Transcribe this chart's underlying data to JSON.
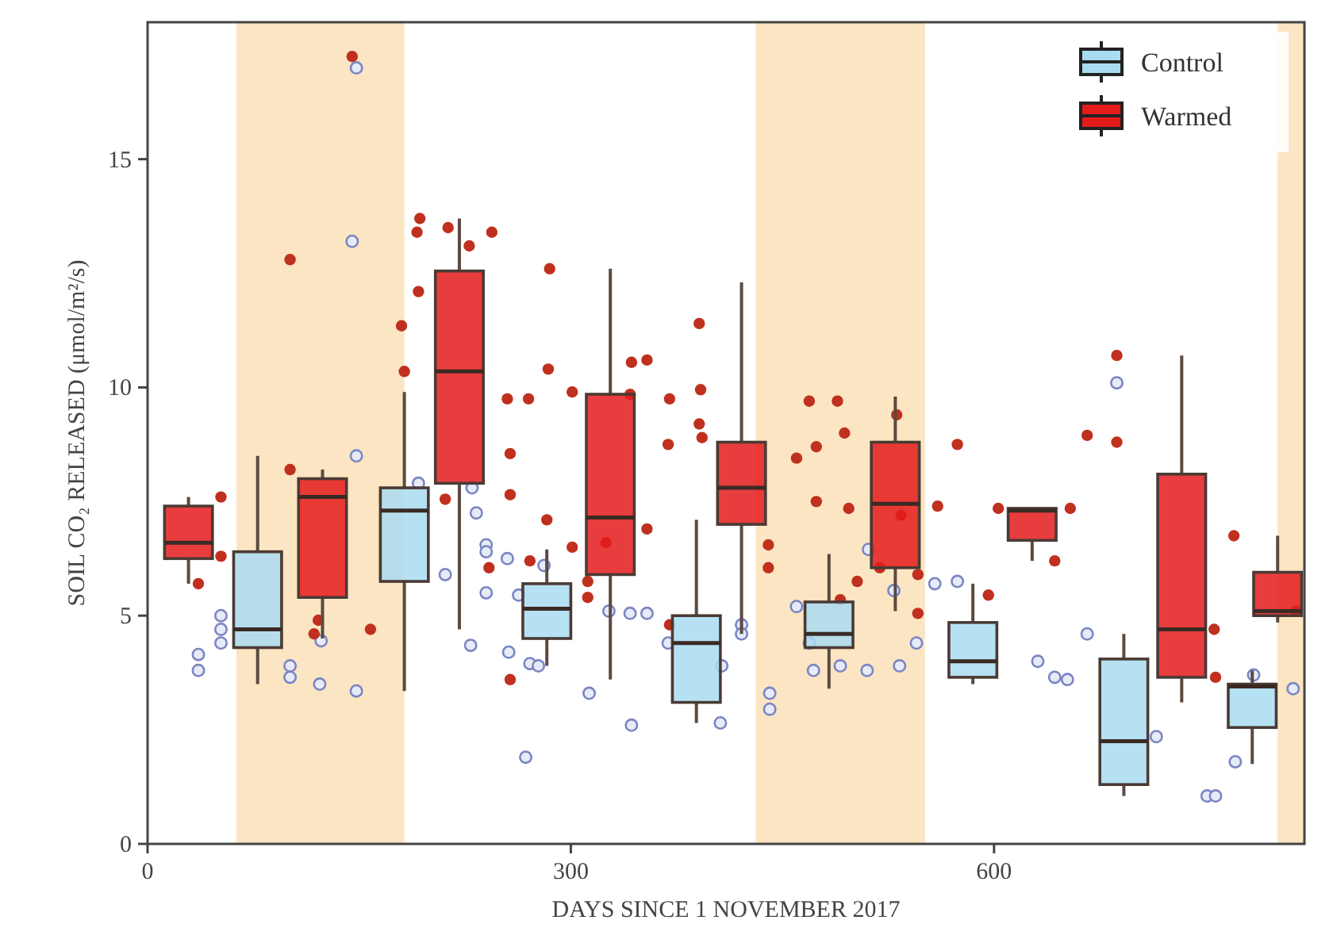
{
  "chart_data": {
    "type": "box",
    "xlabel": "DAYS SINCE 1 NOVEMBER 2017",
    "ylabel": "SOIL CO₂ RELEASED (μmol/m²/s)",
    "xlim": [
      0,
      820
    ],
    "xticks": [
      0,
      300,
      600
    ],
    "ylim": [
      0,
      18
    ],
    "yticks": [
      0,
      5,
      10,
      15
    ],
    "legend": "top right",
    "marker": "circle",
    "bands": [
      {
        "axis": "x",
        "from": 63,
        "to": 182,
        "color": "#fbe5c2"
      },
      {
        "axis": "x",
        "from": 431,
        "to": 551,
        "color": "#fbe5c2"
      },
      {
        "axis": "x",
        "from": 801,
        "to": 820,
        "color": "#fbe5c2"
      }
    ],
    "series": [
      {
        "type": "scatter",
        "color": "#7b86c4",
        "x": [
          36,
          36,
          52,
          52,
          52,
          101,
          101,
          123,
          122,
          148,
          148,
          145,
          148,
          192,
          230,
          233,
          240,
          240,
          240,
          255,
          263,
          256,
          271,
          268,
          229,
          211,
          281,
          277,
          327,
          342,
          354,
          343,
          313,
          369,
          407,
          406,
          421,
          421,
          441,
          441,
          460,
          469,
          472,
          491,
          510,
          511,
          529,
          533,
          545,
          558,
          574,
          631,
          643,
          652,
          666,
          715,
          751,
          757,
          771,
          784,
          812,
          687
        ],
        "values": [
          4.15,
          3.8,
          5.0,
          4.7,
          4.4,
          3.9,
          3.65,
          4.45,
          3.5,
          3.35,
          17.0,
          13.2,
          8.5,
          7.9,
          7.8,
          7.25,
          6.55,
          6.4,
          5.5,
          6.25,
          5.45,
          4.2,
          3.95,
          1.9,
          4.35,
          5.9,
          6.1,
          3.9,
          5.1,
          5.05,
          5.05,
          2.6,
          3.3,
          4.4,
          3.9,
          2.65,
          4.8,
          4.6,
          2.95,
          3.3,
          5.2,
          4.4,
          3.8,
          3.9,
          3.8,
          6.45,
          5.55,
          3.9,
          4.4,
          5.7,
          5.75,
          4.0,
          3.65,
          3.6,
          4.6,
          2.35,
          1.05,
          1.05,
          1.8,
          3.7,
          3.4,
          10.1
        ]
      },
      {
        "type": "scatter",
        "color": "#c0301f",
        "x": [
          52,
          52,
          36,
          101,
          101,
          121,
          118,
          158,
          145,
          180,
          182,
          193,
          191,
          192,
          213,
          228,
          244,
          255,
          270,
          257,
          257,
          211,
          242,
          257,
          283,
          301,
          271,
          312,
          312,
          325,
          354,
          285,
          284,
          301,
          343,
          354,
          342,
          391,
          370,
          392,
          370,
          369,
          393,
          391,
          440,
          440,
          460,
          474,
          494,
          474,
          497,
          519,
          491,
          503,
          469,
          489,
          531,
          534,
          574,
          560,
          546,
          546,
          603,
          654,
          643,
          596,
          666,
          687,
          687,
          770,
          756,
          757,
          814
        ],
        "values": [
          7.6,
          6.3,
          5.7,
          12.8,
          8.2,
          4.9,
          4.6,
          4.7,
          17.25,
          11.35,
          10.35,
          13.7,
          13.4,
          12.1,
          13.5,
          13.1,
          13.4,
          9.75,
          9.75,
          8.55,
          7.65,
          7.55,
          6.05,
          3.6,
          7.1,
          6.5,
          6.2,
          5.75,
          5.4,
          6.6,
          6.9,
          12.6,
          10.4,
          9.9,
          10.55,
          10.6,
          9.85,
          9.2,
          9.75,
          9.95,
          4.8,
          8.75,
          8.9,
          11.4,
          6.55,
          6.05,
          8.45,
          8.7,
          9.0,
          7.5,
          7.35,
          6.05,
          5.35,
          5.75,
          9.7,
          9.7,
          9.4,
          7.2,
          8.75,
          7.4,
          5.9,
          5.05,
          7.35,
          7.35,
          6.2,
          5.45,
          8.95,
          8.8,
          10.7,
          6.75,
          4.7,
          3.65,
          5.1
        ]
      },
      {
        "name": "Control",
        "color": "#a9dcf0",
        "x": [
          78,
          182,
          283,
          389,
          483,
          585,
          692,
          783
        ],
        "boxes": [
          {
            "low": 3.5,
            "q1": 4.3,
            "median": 4.7,
            "q3": 6.4,
            "high": 8.5
          },
          {
            "low": 3.35,
            "q1": 5.75,
            "median": 7.3,
            "q3": 7.8,
            "high": 9.9
          },
          {
            "low": 3.9,
            "q1": 4.5,
            "median": 5.15,
            "q3": 5.7,
            "high": 6.45
          },
          {
            "low": 2.65,
            "q1": 3.1,
            "median": 4.4,
            "q3": 5.0,
            "high": 7.1
          },
          {
            "low": 3.4,
            "q1": 4.3,
            "median": 4.6,
            "q3": 5.3,
            "high": 6.35
          },
          {
            "low": 3.5,
            "q1": 3.65,
            "median": 4.0,
            "q3": 4.85,
            "high": 5.7
          },
          {
            "low": 1.05,
            "q1": 1.3,
            "median": 2.25,
            "q3": 4.05,
            "high": 4.6
          },
          {
            "low": 1.75,
            "q1": 2.55,
            "median": 3.45,
            "q3": 3.5,
            "high": 3.8
          }
        ]
      },
      {
        "name": "Warmed",
        "color": "#e41b1c",
        "x": [
          29,
          124,
          221,
          328,
          421,
          530,
          627,
          733,
          801
        ],
        "boxes": [
          {
            "low": 5.7,
            "q1": 6.25,
            "median": 6.6,
            "q3": 7.4,
            "high": 7.6
          },
          {
            "low": 4.5,
            "q1": 5.4,
            "median": 7.6,
            "q3": 8.0,
            "high": 8.2
          },
          {
            "low": 4.7,
            "q1": 7.9,
            "median": 10.35,
            "q3": 12.55,
            "high": 13.7
          },
          {
            "low": 3.6,
            "q1": 5.9,
            "median": 7.15,
            "q3": 9.85,
            "high": 12.6
          },
          {
            "low": 4.6,
            "q1": 7.0,
            "median": 7.8,
            "q3": 8.8,
            "high": 12.3
          },
          {
            "low": 5.1,
            "q1": 6.05,
            "median": 7.45,
            "q3": 8.8,
            "high": 9.8
          },
          {
            "low": 6.2,
            "q1": 6.65,
            "median": 7.3,
            "q3": 7.35,
            "high": 7.35
          },
          {
            "low": 3.1,
            "q1": 3.65,
            "median": 4.7,
            "q3": 8.1,
            "high": 10.7
          },
          {
            "low": 4.85,
            "q1": 5.0,
            "median": 5.1,
            "q3": 5.95,
            "high": 6.75
          }
        ]
      }
    ]
  }
}
